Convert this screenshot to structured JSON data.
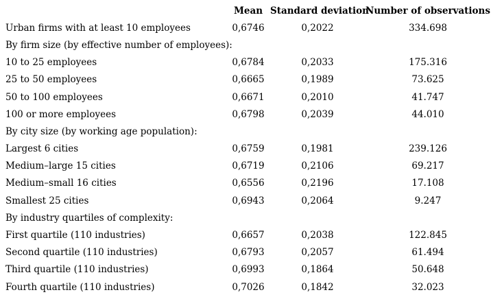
{
  "colors": {
    "background": "#ffffff",
    "text": "#000000"
  },
  "table": {
    "columns": [
      "",
      "Mean",
      "Standard deviation",
      "Number of observations"
    ],
    "rows": [
      {
        "type": "data",
        "label": "Urban firms with at least 10 employees",
        "mean": "0,6746",
        "sd": "0,2022",
        "n": "334.698"
      },
      {
        "type": "section",
        "label": "By firm size (by effective number of employees):",
        "mean": "",
        "sd": "",
        "n": ""
      },
      {
        "type": "data",
        "label": "10 to 25 employees",
        "mean": "0,6784",
        "sd": "0,2033",
        "n": "175.316"
      },
      {
        "type": "data",
        "label": "25 to 50 employees",
        "mean": "0,6665",
        "sd": "0,1989",
        "n": "73.625"
      },
      {
        "type": "data",
        "label": "50 to 100 employees",
        "mean": "0,6671",
        "sd": "0,2010",
        "n": "41.747"
      },
      {
        "type": "data",
        "label": "100 or more employees",
        "mean": "0,6798",
        "sd": "0,2039",
        "n": "44.010"
      },
      {
        "type": "section",
        "label": "By city size (by working age population):",
        "mean": "",
        "sd": "",
        "n": ""
      },
      {
        "type": "data",
        "label": "Largest 6 cities",
        "mean": "0,6759",
        "sd": "0,1981",
        "n": "239.126"
      },
      {
        "type": "data",
        "label": "Medium–large 15 cities",
        "mean": "0,6719",
        "sd": "0,2106",
        "n": "69.217"
      },
      {
        "type": "data",
        "label": "Medium–small 16 cities",
        "mean": "0,6556",
        "sd": "0,2196",
        "n": "17.108"
      },
      {
        "type": "data",
        "label": "Smallest 25 cities",
        "mean": "0,6943",
        "sd": "0,2064",
        "n": "9.247"
      },
      {
        "type": "section",
        "label": "By industry quartiles of complexity:",
        "mean": "",
        "sd": "",
        "n": ""
      },
      {
        "type": "data",
        "label": "First quartile (110 industries)",
        "mean": "0,6657",
        "sd": "0,2038",
        "n": "122.845"
      },
      {
        "type": "data",
        "label": "Second quartile (110 industries)",
        "mean": "0,6793",
        "sd": "0,2057",
        "n": "61.494"
      },
      {
        "type": "data",
        "label": "Third quartile (110 industries)",
        "mean": "0,6993",
        "sd": "0,1864",
        "n": "50.648"
      },
      {
        "type": "data",
        "label": "Fourth quartile (110 industries)",
        "mean": "0,7026",
        "sd": "0,1842",
        "n": "32.023"
      }
    ]
  }
}
